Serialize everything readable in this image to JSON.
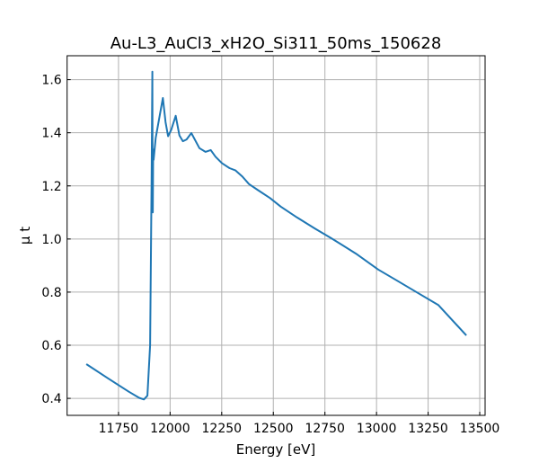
{
  "chart_data": {
    "type": "line",
    "title": "Au-L3_AuCl3_xH2O_Si311_50ms_150628",
    "xlabel": "Energy [eV]",
    "ylabel": "μ t",
    "xlim": [
      11501,
      13526
    ],
    "ylim": [
      0.336,
      1.69
    ],
    "xticks": [
      11750,
      12000,
      12250,
      12500,
      12750,
      13000,
      13250,
      13500
    ],
    "yticks": [
      0.4,
      0.6,
      0.8,
      1.0,
      1.2,
      1.4,
      1.6
    ],
    "ytick_labels": [
      "0.4",
      "0.6",
      "0.8",
      "1.0",
      "1.2",
      "1.4",
      "1.6"
    ],
    "grid": true,
    "series_color": "#1f77b4",
    "series": [
      {
        "x": [
          11594,
          11700,
          11800,
          11850,
          11873,
          11890,
          11903,
          11910,
          11914,
          11915,
          11916,
          11918,
          11920,
          11930,
          11946,
          11965,
          11978,
          11990,
          12005,
          12027,
          12045,
          12062,
          12080,
          12103,
          12142,
          12171,
          12197,
          12220,
          12251,
          12288,
          12317,
          12350,
          12382,
          12426,
          12484,
          12536,
          12615,
          12700,
          12781,
          12900,
          13008,
          13100,
          13200,
          13300,
          13435
        ],
        "y": [
          0.529,
          0.475,
          0.425,
          0.402,
          0.396,
          0.41,
          0.6,
          1.2,
          1.63,
          1.3,
          1.1,
          1.337,
          1.298,
          1.38,
          1.45,
          1.531,
          1.44,
          1.387,
          1.41,
          1.464,
          1.39,
          1.368,
          1.375,
          1.399,
          1.342,
          1.328,
          1.335,
          1.31,
          1.286,
          1.267,
          1.258,
          1.235,
          1.207,
          1.184,
          1.154,
          1.122,
          1.081,
          1.04,
          1.003,
          0.945,
          0.885,
          0.843,
          0.797,
          0.751,
          0.637
        ]
      }
    ]
  }
}
